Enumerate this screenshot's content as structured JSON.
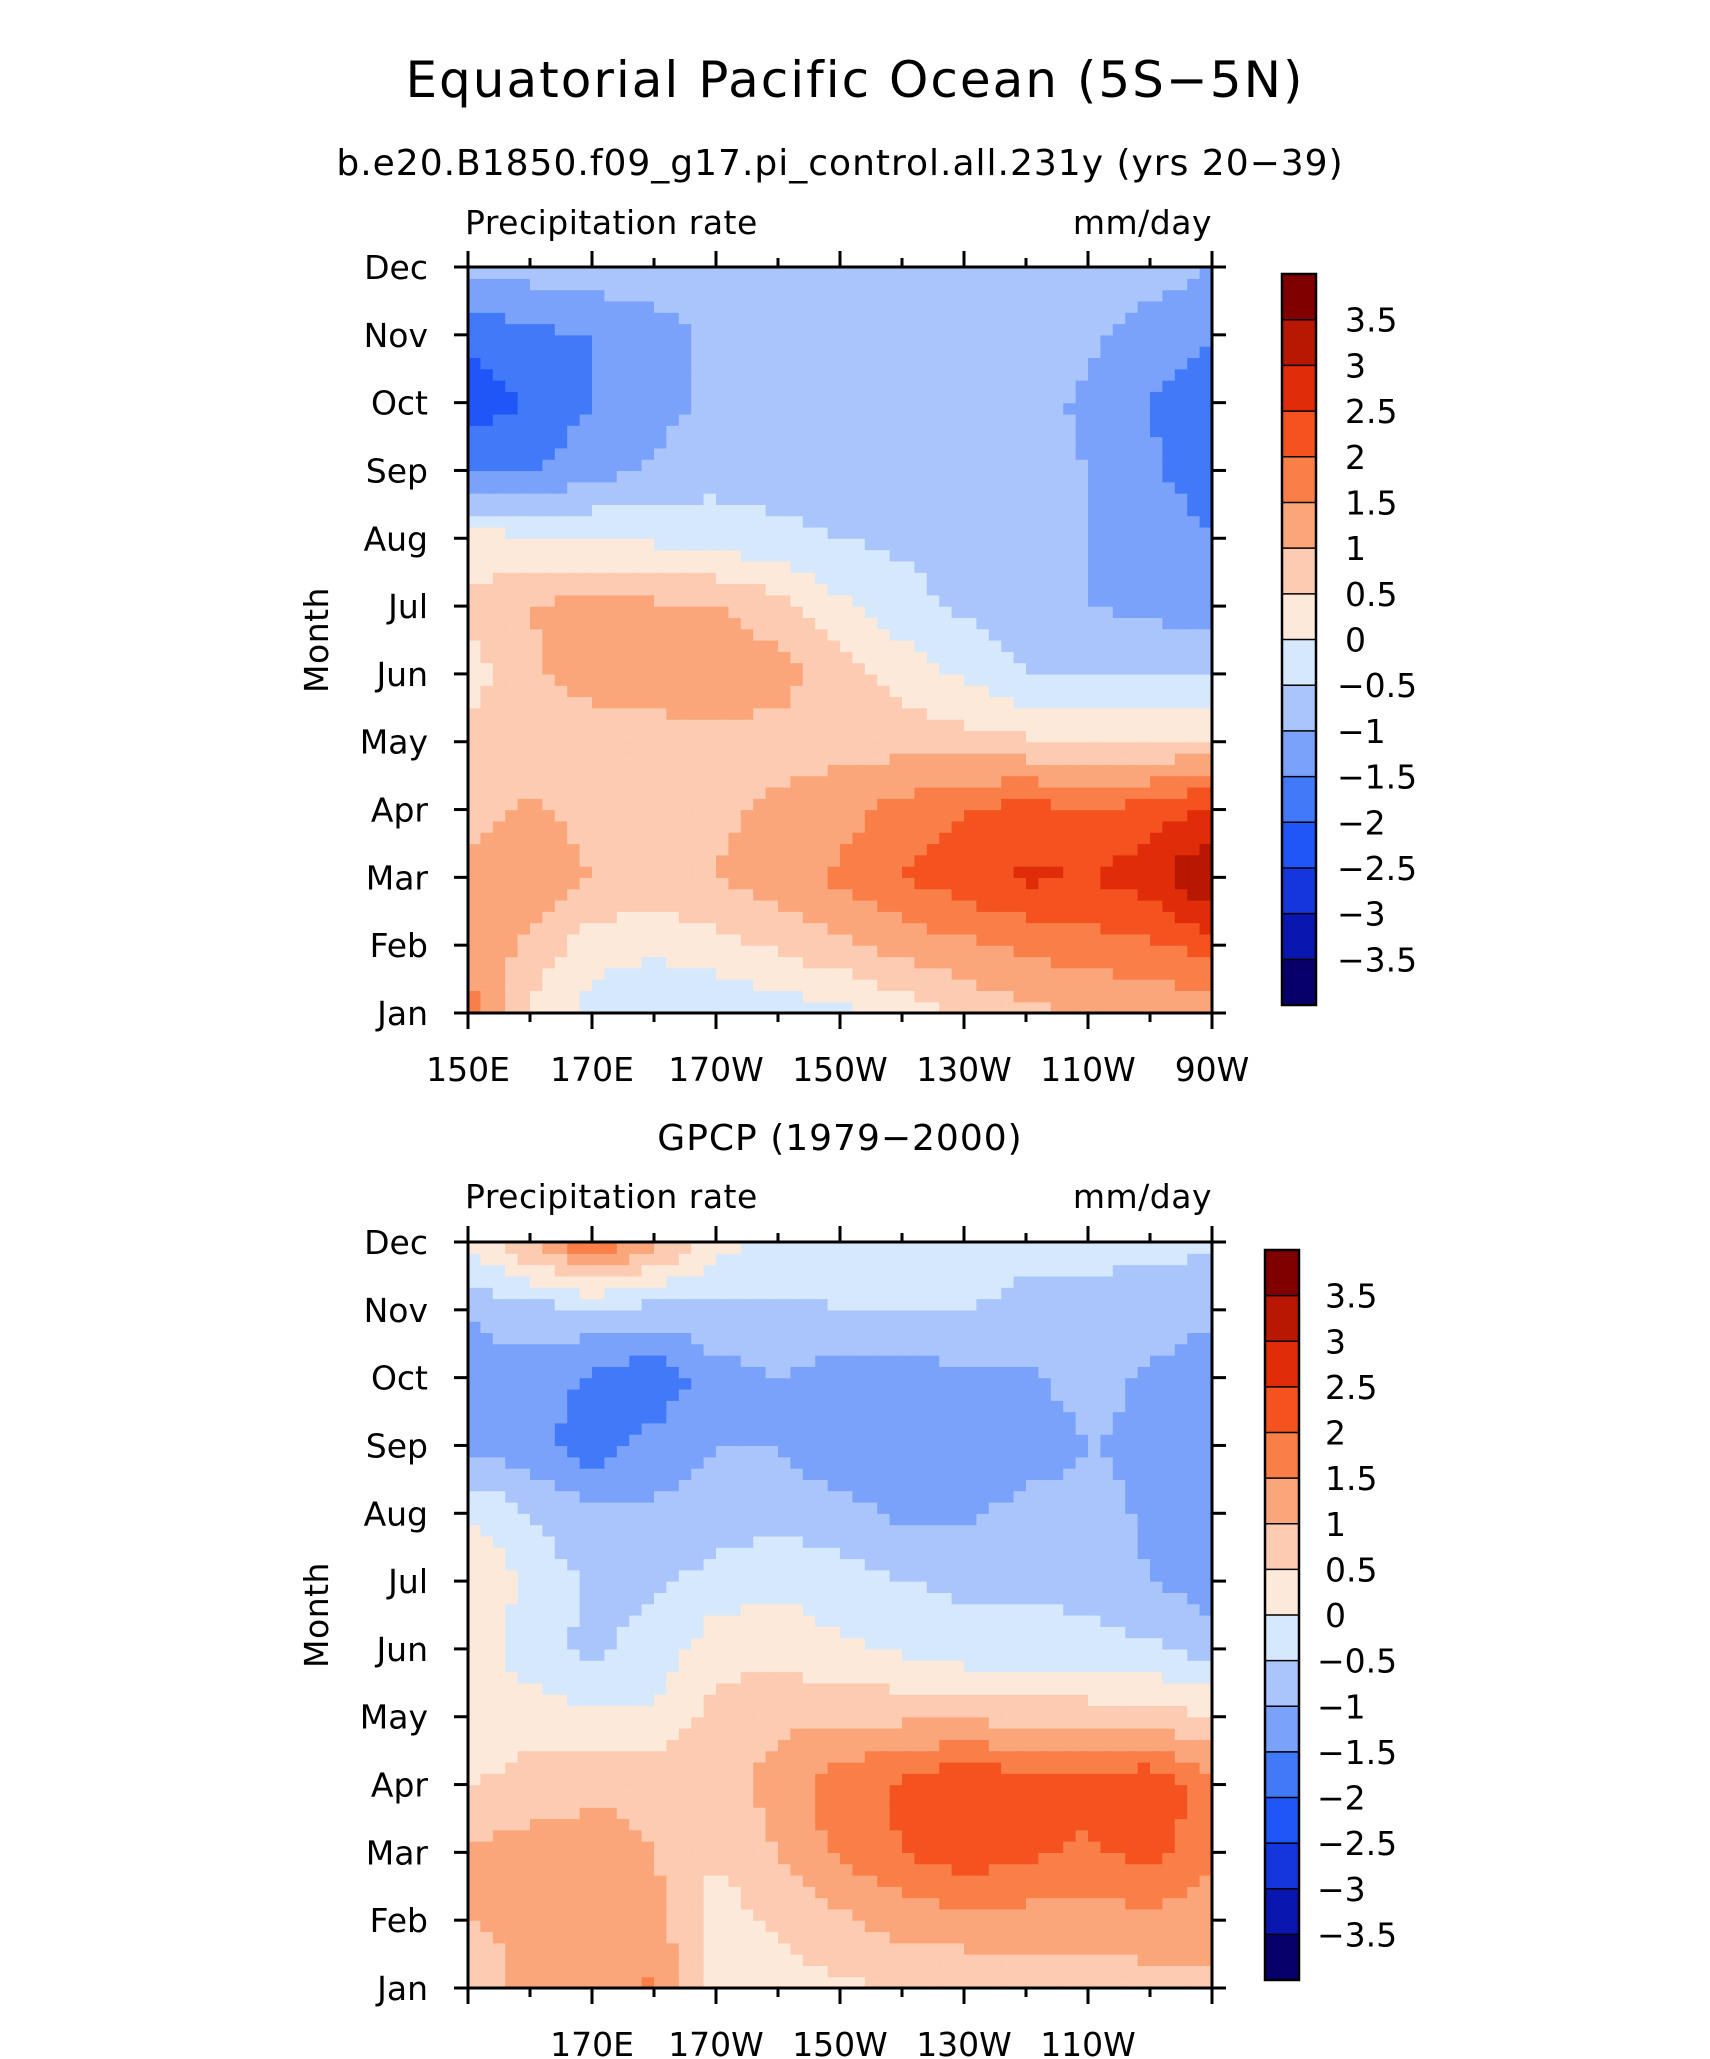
{
  "figure": {
    "title": "Equatorial Pacific Ocean (5S−5N)",
    "colors": {
      "levels": [
        "#08006a",
        "#0a16b0",
        "#1436dc",
        "#1e56f7",
        "#4279f9",
        "#7aa2fb",
        "#aac5fb",
        "#d6e8fc",
        "#fde9da",
        "#fccbb1",
        "#fba67a",
        "#f97e48",
        "#f45320",
        "#e02c08",
        "#b81702",
        "#800000"
      ]
    }
  },
  "chart_data": [
    {
      "type": "heatmap",
      "title": "b.e20.B1850.f09_g17.pi_control.all.231y (yrs 20−39)",
      "left_label": "Precipitation rate",
      "right_label": "mm/day",
      "ylabel": "Month",
      "y_ticks": [
        "Jan",
        "Feb",
        "Mar",
        "Apr",
        "May",
        "Jun",
        "Jul",
        "Aug",
        "Sep",
        "Oct",
        "Nov",
        "Dec"
      ],
      "x_ticks": [
        "150E",
        "170E",
        "170W",
        "150W",
        "130W",
        "110W",
        "90W"
      ],
      "x_tick_lon": [
        150,
        170,
        190,
        210,
        230,
        250,
        270
      ],
      "xlim": [
        150,
        270
      ],
      "colorbar_labels": [
        "3.5",
        "3",
        "2.5",
        "2",
        "1.5",
        "1",
        "0.5",
        "0",
        "−0.5",
        "−1",
        "−1.5",
        "−2",
        "−2.5",
        "−3",
        "−3.5"
      ],
      "levels": [
        -3.5,
        -3,
        -2.5,
        -2,
        -1.5,
        -1,
        -0.5,
        0,
        0.5,
        1,
        1.5,
        2,
        2.5,
        3,
        3.5
      ],
      "lon": [
        150,
        160,
        170,
        180,
        190,
        200,
        210,
        220,
        230,
        240,
        250,
        260,
        270
      ],
      "months": [
        "Jan",
        "Feb",
        "Mar",
        "Apr",
        "May",
        "Jun",
        "Jul",
        "Aug",
        "Sep",
        "Oct",
        "Nov",
        "Dec"
      ],
      "z": [
        [
          1.8,
          0.4,
          -0.2,
          -0.4,
          -0.4,
          -0.3,
          -0.2,
          0.2,
          0.6,
          0.9,
          1.0,
          1.1,
          1.2
        ],
        [
          1.3,
          0.9,
          0.2,
          0.1,
          0.3,
          0.6,
          0.9,
          1.2,
          1.4,
          1.6,
          1.8,
          1.9,
          2.2
        ],
        [
          1.1,
          1.4,
          1.0,
          0.9,
          1.0,
          1.3,
          1.6,
          2.0,
          2.3,
          2.6,
          2.5,
          2.8,
          3.6
        ],
        [
          0.8,
          1.1,
          0.8,
          0.8,
          0.9,
          1.1,
          1.3,
          1.7,
          2.0,
          2.2,
          2.0,
          2.2,
          2.6
        ],
        [
          0.6,
          0.6,
          0.6,
          0.7,
          0.8,
          0.8,
          0.8,
          0.8,
          0.7,
          0.6,
          0.5,
          0.5,
          0.6
        ],
        [
          0.3,
          0.9,
          1.3,
          1.4,
          1.4,
          1.2,
          0.7,
          0.3,
          -0.1,
          -0.5,
          -0.6,
          -0.5,
          -0.6
        ],
        [
          0.6,
          1.0,
          1.2,
          1.1,
          1.0,
          0.7,
          0.1,
          -0.3,
          -0.6,
          -0.8,
          -1.0,
          -1.1,
          -1.3
        ],
        [
          0.2,
          0.1,
          0.0,
          -0.1,
          -0.2,
          -0.4,
          -0.5,
          -0.6,
          -0.7,
          -0.8,
          -1.0,
          -1.2,
          -1.5
        ],
        [
          -1.6,
          -1.5,
          -1.2,
          -0.9,
          -0.7,
          -0.7,
          -0.7,
          -0.7,
          -0.7,
          -0.8,
          -1.0,
          -1.4,
          -1.8
        ],
        [
          -2.3,
          -2.0,
          -1.5,
          -1.2,
          -0.9,
          -0.7,
          -0.7,
          -0.7,
          -0.7,
          -0.8,
          -1.1,
          -1.5,
          -2.0
        ],
        [
          -1.9,
          -1.6,
          -1.5,
          -1.2,
          -0.9,
          -0.7,
          -0.7,
          -0.7,
          -0.7,
          -0.7,
          -0.9,
          -1.2,
          -1.4
        ],
        [
          -0.9,
          -0.8,
          -0.7,
          -0.7,
          -0.7,
          -0.7,
          -0.7,
          -0.7,
          -0.7,
          -0.7,
          -0.7,
          -0.8,
          -1.0
        ]
      ]
    },
    {
      "type": "heatmap",
      "title": "GPCP (1979−2000)",
      "left_label": "Precipitation rate",
      "right_label": "mm/day",
      "ylabel": "Month",
      "y_ticks": [
        "Jan",
        "Feb",
        "Mar",
        "Apr",
        "May",
        "Jun",
        "Jul",
        "Aug",
        "Sep",
        "Oct",
        "Nov",
        "Dec"
      ],
      "x_ticks": [
        "170E",
        "170W",
        "150W",
        "130W",
        "110W"
      ],
      "x_tick_lon": [
        170,
        190,
        210,
        230,
        250
      ],
      "xlim": [
        150,
        270
      ],
      "colorbar_labels": [
        "3.5",
        "3",
        "2.5",
        "2",
        "1.5",
        "1",
        "0.5",
        "0",
        "−0.5",
        "−1",
        "−1.5",
        "−2",
        "−2.5",
        "−3",
        "−3.5"
      ],
      "levels": [
        -3.5,
        -3,
        -2.5,
        -2,
        -1.5,
        -1,
        -0.5,
        0,
        0.5,
        1,
        1.5,
        2,
        2.5,
        3,
        3.5
      ],
      "lon": [
        150,
        160,
        170,
        180,
        190,
        200,
        210,
        220,
        230,
        240,
        250,
        260,
        270
      ],
      "months": [
        "Jan",
        "Feb",
        "Mar",
        "Apr",
        "May",
        "Jun",
        "Jul",
        "Aug",
        "Sep",
        "Oct",
        "Nov",
        "Dec"
      ],
      "z": [
        [
          0.6,
          1.2,
          1.3,
          1.6,
          0.2,
          0.3,
          0.4,
          0.5,
          0.6,
          0.6,
          0.7,
          0.8,
          0.9
        ],
        [
          1.0,
          1.1,
          1.0,
          1.2,
          0.2,
          0.6,
          0.9,
          1.2,
          1.3,
          1.3,
          1.3,
          1.3,
          1.2
        ],
        [
          1.1,
          1.2,
          1.2,
          1.0,
          0.6,
          1.0,
          1.6,
          2.0,
          2.3,
          2.1,
          1.9,
          2.2,
          1.6
        ],
        [
          0.5,
          0.7,
          0.9,
          0.9,
          0.8,
          1.2,
          1.8,
          2.1,
          2.5,
          2.3,
          2.2,
          2.5,
          1.7
        ],
        [
          0.0,
          0.3,
          0.1,
          0.1,
          0.7,
          0.9,
          0.9,
          0.9,
          0.9,
          0.8,
          0.8,
          0.7,
          0.5
        ],
        [
          0.3,
          -0.3,
          -0.6,
          -0.3,
          0.3,
          0.3,
          0.1,
          -0.1,
          -0.3,
          -0.3,
          -0.4,
          -0.4,
          -0.7
        ],
        [
          0.6,
          -0.2,
          -0.6,
          -0.6,
          -0.3,
          -0.1,
          -0.3,
          -0.5,
          -0.6,
          -0.6,
          -0.6,
          -1.0,
          -1.3
        ],
        [
          0.0,
          -0.5,
          -0.8,
          -0.9,
          -0.8,
          -0.7,
          -0.8,
          -1.1,
          -1.1,
          -0.8,
          -0.8,
          -1.1,
          -1.4
        ],
        [
          -1.2,
          -1.3,
          -1.8,
          -1.3,
          -1.0,
          -1.0,
          -1.4,
          -1.4,
          -1.4,
          -1.3,
          -1.0,
          -1.1,
          -1.4
        ],
        [
          -1.2,
          -1.2,
          -1.6,
          -1.9,
          -1.2,
          -1.0,
          -1.3,
          -1.3,
          -1.1,
          -1.1,
          -0.8,
          -1.1,
          -1.3
        ],
        [
          -1.0,
          -0.7,
          -0.6,
          -0.7,
          -0.6,
          -0.6,
          -0.5,
          -0.5,
          -0.5,
          -0.6,
          -0.6,
          -0.7,
          -0.9
        ],
        [
          0.2,
          1.0,
          2.0,
          1.2,
          0.2,
          -0.2,
          -0.3,
          -0.3,
          -0.3,
          -0.4,
          -0.4,
          -0.4,
          -0.4
        ]
      ]
    }
  ]
}
